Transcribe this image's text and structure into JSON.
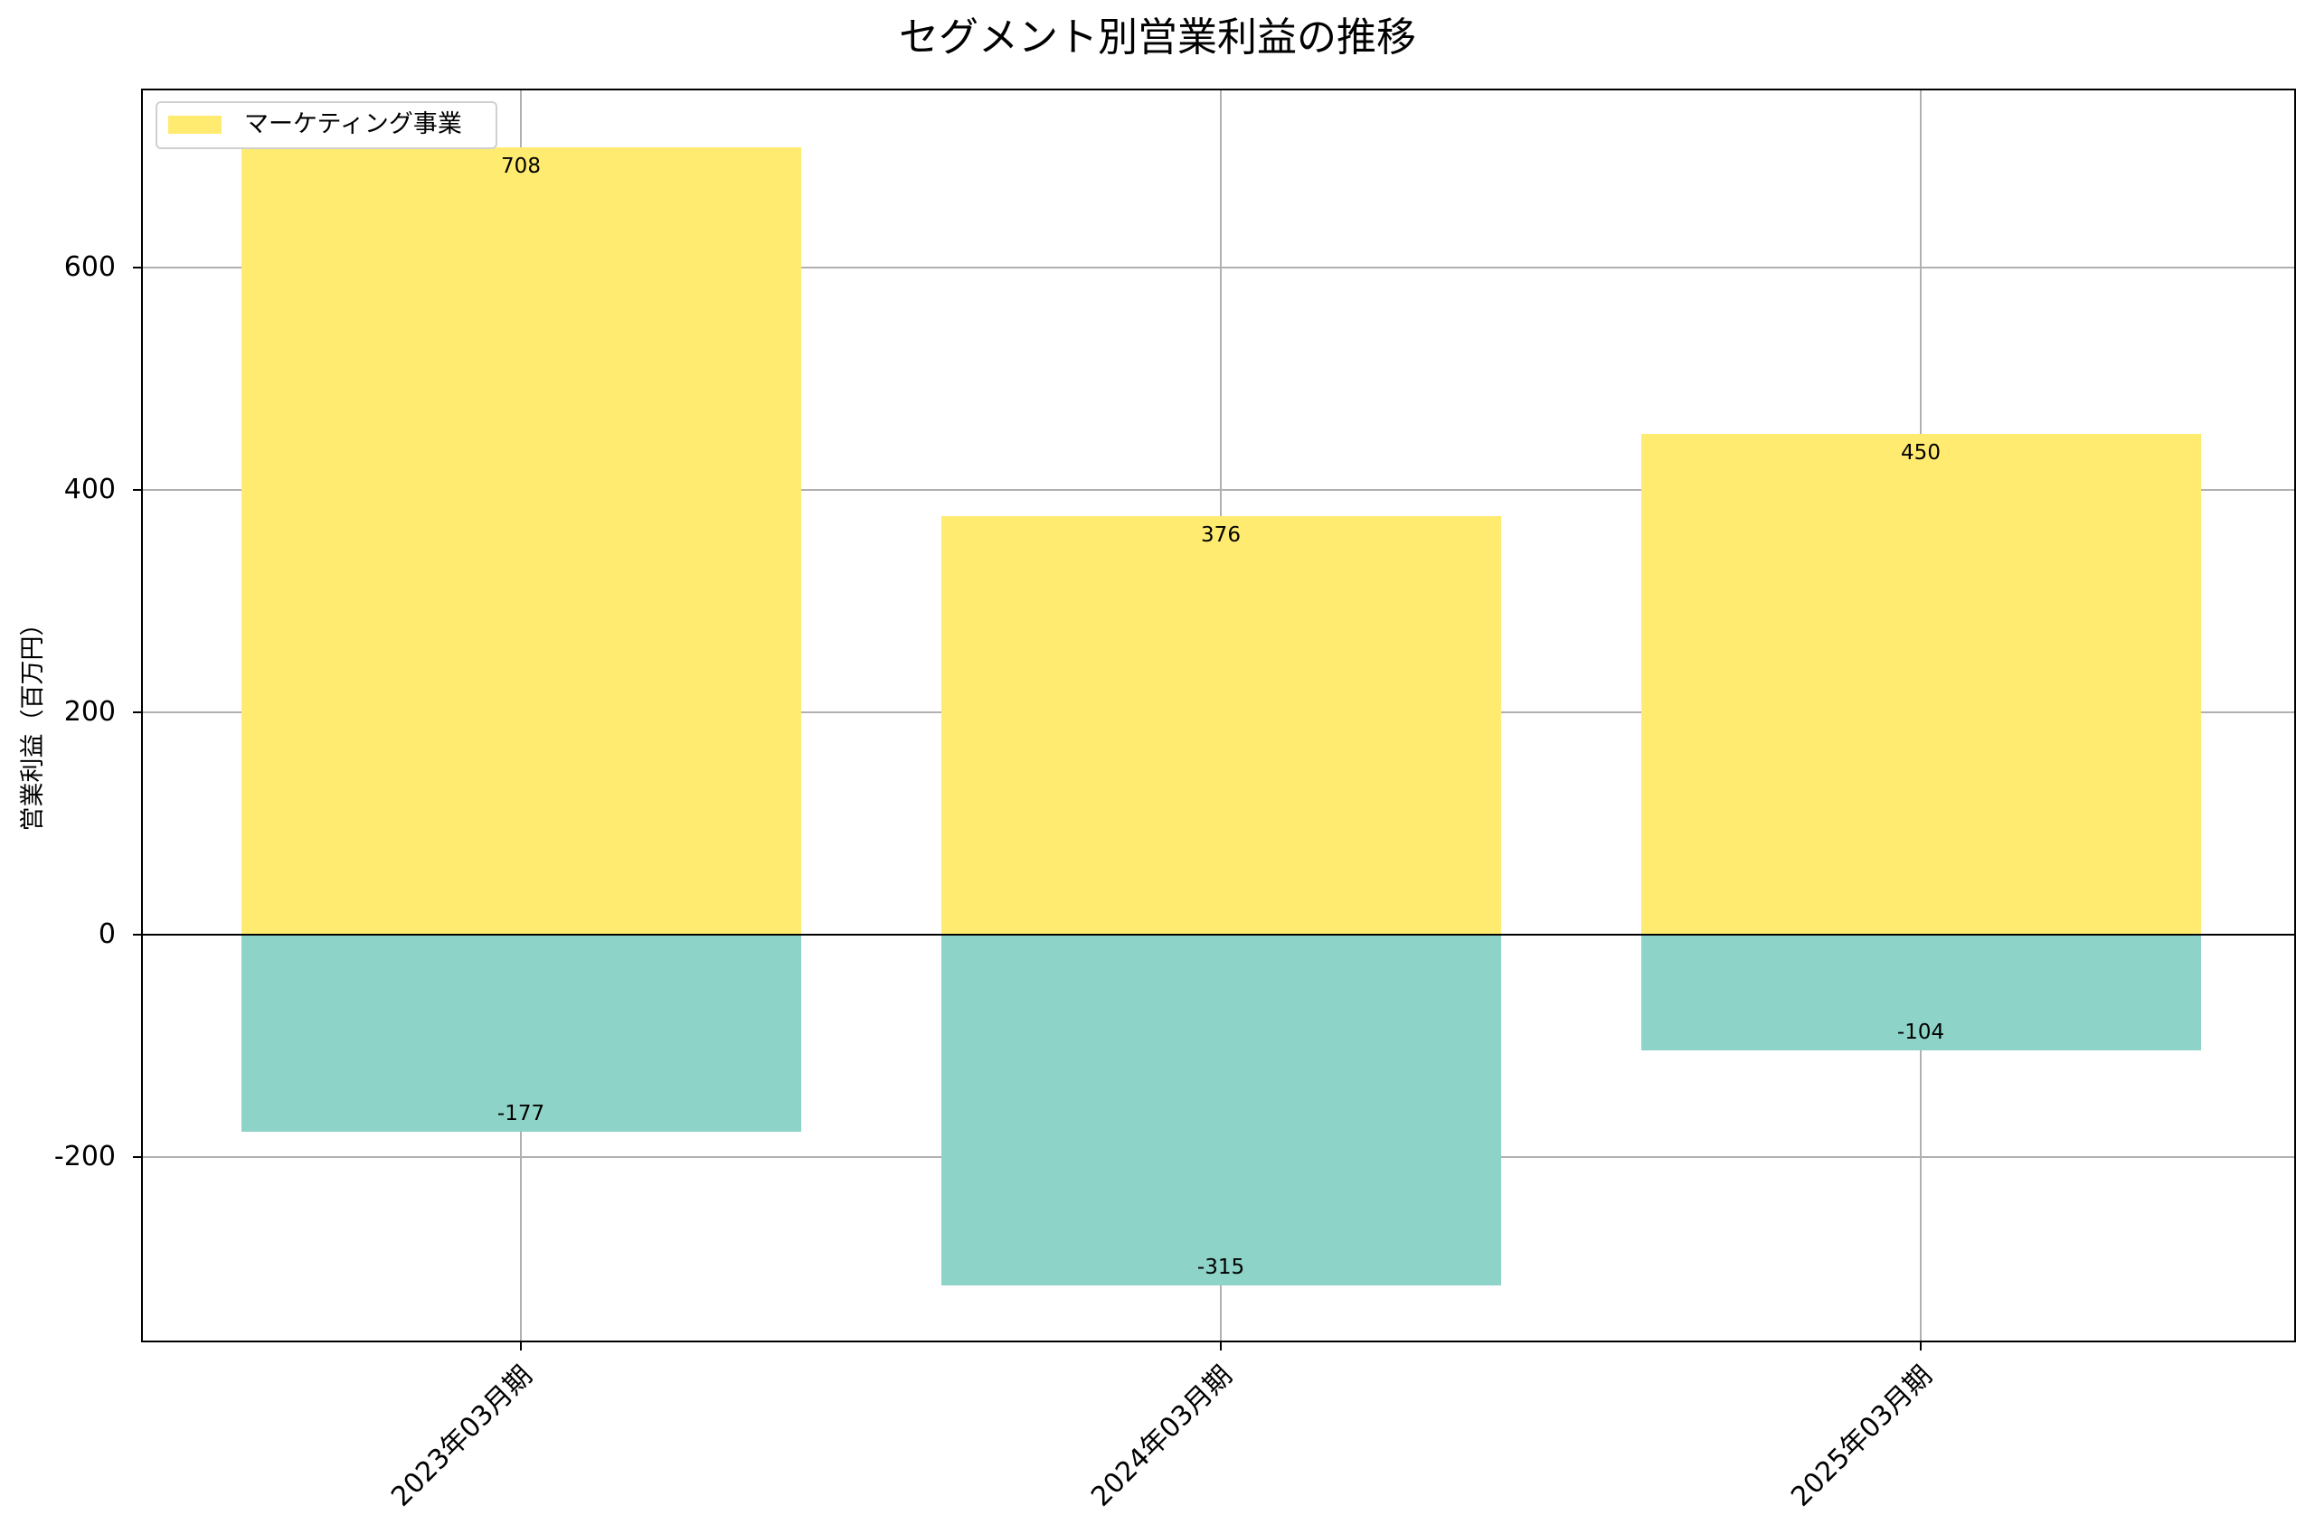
{
  "chart_data": {
    "type": "bar",
    "title": "セグメント別営業利益の推移",
    "xlabel": "",
    "ylabel": "営業利益（百万円）",
    "categories": [
      "2023年03月期",
      "2024年03月期",
      "2025年03月期"
    ],
    "series": [
      {
        "name": "マーケティング事業",
        "values": [
          708,
          376,
          450
        ],
        "color": "#FFEB70",
        "in_legend": true
      },
      {
        "name": "",
        "values": [
          -177,
          -315,
          -104
        ],
        "color": "#8DD3C7",
        "in_legend": false
      }
    ],
    "value_labels": [
      [
        "708",
        "376",
        "450"
      ],
      [
        "-177",
        "-315",
        "-104"
      ]
    ],
    "ylim": [
      -368,
      759
    ],
    "yticks": [
      -200,
      0,
      200,
      400,
      600
    ],
    "ytick_labels": [
      "-200",
      "0",
      "200",
      "400",
      "600"
    ],
    "grid": true,
    "legend_position": "upper left",
    "xtick_rotation": -45
  }
}
